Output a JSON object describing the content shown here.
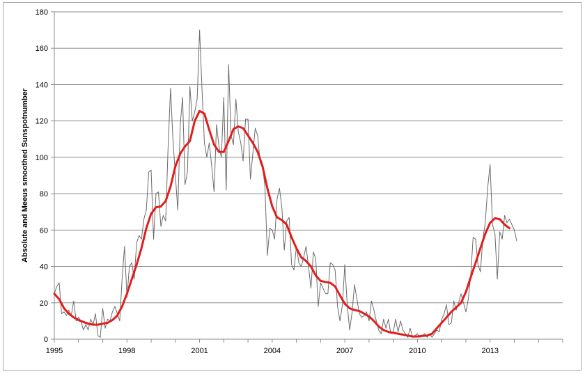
{
  "chart_data": {
    "type": "line",
    "title": "",
    "xlabel": "",
    "ylabel": "Absolute and Meeus smoothed Sunspotnumber",
    "xlim": [
      1995,
      2016
    ],
    "ylim": [
      0,
      180
    ],
    "x_ticks": [
      1995,
      1998,
      2001,
      2004,
      2007,
      2010,
      2013
    ],
    "x_tick_labels": [
      "1995",
      "1998",
      "2001",
      "2004",
      "2007",
      "2010",
      "2013"
    ],
    "y_ticks": [
      0,
      20,
      40,
      60,
      80,
      100,
      120,
      140,
      160,
      180
    ],
    "y_tick_labels": [
      "0",
      "20",
      "40",
      "60",
      "80",
      "100",
      "120",
      "140",
      "160",
      "180"
    ],
    "grid": "horizontal",
    "legend": "none",
    "series": [
      {
        "style": "thin gray line",
        "color": "#6b6b6b",
        "points": [
          [
            1995.0,
            25
          ],
          [
            1995.1,
            29
          ],
          [
            1995.2,
            31
          ],
          [
            1995.3,
            14
          ],
          [
            1995.4,
            15
          ],
          [
            1995.5,
            13
          ],
          [
            1995.6,
            16
          ],
          [
            1995.7,
            13
          ],
          [
            1995.8,
            21
          ],
          [
            1995.9,
            10
          ],
          [
            1996.0,
            12
          ],
          [
            1996.1,
            10
          ],
          [
            1996.2,
            5
          ],
          [
            1996.3,
            8
          ],
          [
            1996.4,
            5
          ],
          [
            1996.5,
            11
          ],
          [
            1996.6,
            8
          ],
          [
            1996.7,
            14
          ],
          [
            1996.8,
            2
          ],
          [
            1996.9,
            1
          ],
          [
            1997.0,
            17
          ],
          [
            1997.1,
            6
          ],
          [
            1997.2,
            11
          ],
          [
            1997.3,
            10
          ],
          [
            1997.4,
            15
          ],
          [
            1997.5,
            18
          ],
          [
            1997.6,
            14
          ],
          [
            1997.7,
            10
          ],
          [
            1997.8,
            33
          ],
          [
            1997.9,
            51
          ],
          [
            1998.0,
            23
          ],
          [
            1998.1,
            40
          ],
          [
            1998.2,
            42
          ],
          [
            1998.3,
            33
          ],
          [
            1998.4,
            53
          ],
          [
            1998.5,
            57
          ],
          [
            1998.6,
            55
          ],
          [
            1998.7,
            66
          ],
          [
            1998.8,
            71
          ],
          [
            1998.9,
            92
          ],
          [
            1999.0,
            93
          ],
          [
            1999.1,
            55
          ],
          [
            1999.2,
            80
          ],
          [
            1999.3,
            81
          ],
          [
            1999.4,
            62
          ],
          [
            1999.5,
            68
          ],
          [
            1999.6,
            65
          ],
          [
            1999.7,
            106
          ],
          [
            1999.8,
            138
          ],
          [
            1999.9,
            110
          ],
          [
            2000.0,
            90
          ],
          [
            2000.1,
            71
          ],
          [
            2000.2,
            118
          ],
          [
            2000.3,
            133
          ],
          [
            2000.4,
            85
          ],
          [
            2000.5,
            92
          ],
          [
            2000.6,
            139
          ],
          [
            2000.7,
            120
          ],
          [
            2000.8,
            125
          ],
          [
            2000.9,
            132
          ],
          [
            2001.0,
            170
          ],
          [
            2001.1,
            138
          ],
          [
            2001.2,
            108
          ],
          [
            2001.3,
            100
          ],
          [
            2001.4,
            108
          ],
          [
            2001.5,
            95
          ],
          [
            2001.6,
            81
          ],
          [
            2001.7,
            118
          ],
          [
            2001.8,
            106
          ],
          [
            2001.9,
            100
          ],
          [
            2002.0,
            133
          ],
          [
            2002.1,
            82
          ],
          [
            2002.2,
            151
          ],
          [
            2002.3,
            112
          ],
          [
            2002.4,
            107
          ],
          [
            2002.5,
            132
          ],
          [
            2002.6,
            114
          ],
          [
            2002.7,
            108
          ],
          [
            2002.8,
            98
          ],
          [
            2002.9,
            121
          ],
          [
            2003.0,
            121
          ],
          [
            2003.1,
            88
          ],
          [
            2003.2,
            102
          ],
          [
            2003.3,
            116
          ],
          [
            2003.4,
            112
          ],
          [
            2003.5,
            97
          ],
          [
            2003.6,
            95
          ],
          [
            2003.7,
            84
          ],
          [
            2003.8,
            46
          ],
          [
            2003.9,
            61
          ],
          [
            2004.0,
            60
          ],
          [
            2004.1,
            55
          ],
          [
            2004.2,
            77
          ],
          [
            2004.3,
            83
          ],
          [
            2004.4,
            72
          ],
          [
            2004.5,
            49
          ],
          [
            2004.6,
            65
          ],
          [
            2004.7,
            67
          ],
          [
            2004.8,
            41
          ],
          [
            2004.9,
            38
          ],
          [
            2005.0,
            51
          ],
          [
            2005.1,
            42
          ],
          [
            2005.2,
            40
          ],
          [
            2005.3,
            45
          ],
          [
            2005.4,
            51
          ],
          [
            2005.5,
            40
          ],
          [
            2005.6,
            28
          ],
          [
            2005.7,
            48
          ],
          [
            2005.8,
            44
          ],
          [
            2005.9,
            18
          ],
          [
            2006.0,
            31
          ],
          [
            2006.1,
            28
          ],
          [
            2006.2,
            25
          ],
          [
            2006.3,
            25
          ],
          [
            2006.4,
            42
          ],
          [
            2006.5,
            41
          ],
          [
            2006.6,
            38
          ],
          [
            2006.7,
            18
          ],
          [
            2006.8,
            10
          ],
          [
            2006.9,
            19
          ],
          [
            2007.0,
            41
          ],
          [
            2007.1,
            19
          ],
          [
            2007.2,
            5
          ],
          [
            2007.3,
            15
          ],
          [
            2007.4,
            30
          ],
          [
            2007.5,
            22
          ],
          [
            2007.6,
            14
          ],
          [
            2007.7,
            12
          ],
          [
            2007.8,
            13
          ],
          [
            2007.9,
            15
          ],
          [
            2008.0,
            10
          ],
          [
            2008.1,
            21
          ],
          [
            2008.2,
            16
          ],
          [
            2008.3,
            10
          ],
          [
            2008.4,
            5
          ],
          [
            2008.5,
            3
          ],
          [
            2008.6,
            11
          ],
          [
            2008.7,
            6
          ],
          [
            2008.8,
            11
          ],
          [
            2008.9,
            3
          ],
          [
            2009.0,
            4
          ],
          [
            2009.1,
            11
          ],
          [
            2009.2,
            4
          ],
          [
            2009.3,
            10
          ],
          [
            2009.4,
            5
          ],
          [
            2009.5,
            3
          ],
          [
            2009.6,
            1
          ],
          [
            2009.7,
            6
          ],
          [
            2009.8,
            1
          ],
          [
            2009.9,
            2
          ],
          [
            2010.0,
            3
          ],
          [
            2010.1,
            1
          ],
          [
            2010.2,
            2
          ],
          [
            2010.3,
            3
          ],
          [
            2010.4,
            1
          ],
          [
            2010.5,
            3
          ],
          [
            2010.6,
            1
          ],
          [
            2010.7,
            3
          ],
          [
            2010.8,
            5
          ],
          [
            2010.9,
            4
          ],
          [
            2011.0,
            11
          ],
          [
            2011.1,
            14
          ],
          [
            2011.2,
            19
          ],
          [
            2011.3,
            8
          ],
          [
            2011.4,
            9
          ],
          [
            2011.5,
            21
          ],
          [
            2011.6,
            16
          ],
          [
            2011.7,
            20
          ],
          [
            2011.8,
            25
          ],
          [
            2011.9,
            20
          ],
          [
            2012.0,
            15
          ],
          [
            2012.1,
            22
          ],
          [
            2012.2,
            35
          ],
          [
            2012.3,
            56
          ],
          [
            2012.4,
            55
          ],
          [
            2012.5,
            41
          ],
          [
            2012.6,
            37
          ],
          [
            2012.7,
            55
          ],
          [
            2012.8,
            64
          ],
          [
            2012.9,
            83
          ],
          [
            2013.0,
            96
          ],
          [
            2013.1,
            63
          ],
          [
            2013.2,
            58
          ],
          [
            2013.3,
            33
          ],
          [
            2013.4,
            59
          ],
          [
            2013.5,
            55
          ],
          [
            2013.6,
            68
          ],
          [
            2013.7,
            64
          ],
          [
            2013.8,
            66
          ],
          [
            2013.9,
            63
          ],
          [
            2014.0,
            60
          ],
          [
            2014.1,
            54
          ]
        ]
      },
      {
        "style": "thick red smoothed line",
        "color": "#e31c1c",
        "points": [
          [
            1995.0,
            25
          ],
          [
            1995.2,
            22
          ],
          [
            1995.4,
            17
          ],
          [
            1995.6,
            14
          ],
          [
            1995.8,
            12
          ],
          [
            1996.0,
            10.5
          ],
          [
            1996.2,
            9.5
          ],
          [
            1996.4,
            8.5
          ],
          [
            1996.6,
            8
          ],
          [
            1996.8,
            8
          ],
          [
            1997.0,
            8.5
          ],
          [
            1997.2,
            9
          ],
          [
            1997.4,
            10.5
          ],
          [
            1997.6,
            13
          ],
          [
            1997.8,
            18
          ],
          [
            1998.0,
            25
          ],
          [
            1998.2,
            33
          ],
          [
            1998.4,
            41
          ],
          [
            1998.6,
            50
          ],
          [
            1998.8,
            61
          ],
          [
            1999.0,
            69
          ],
          [
            1999.2,
            72.5
          ],
          [
            1999.4,
            73
          ],
          [
            1999.6,
            76
          ],
          [
            1999.8,
            84
          ],
          [
            2000.0,
            95
          ],
          [
            2000.2,
            102
          ],
          [
            2000.4,
            106
          ],
          [
            2000.6,
            109
          ],
          [
            2000.8,
            120
          ],
          [
            2001.0,
            125.5
          ],
          [
            2001.2,
            124
          ],
          [
            2001.4,
            115
          ],
          [
            2001.6,
            107
          ],
          [
            2001.8,
            103
          ],
          [
            2002.0,
            103
          ],
          [
            2002.2,
            109
          ],
          [
            2002.4,
            115.5
          ],
          [
            2002.6,
            117
          ],
          [
            2002.8,
            116
          ],
          [
            2003.0,
            112
          ],
          [
            2003.2,
            108
          ],
          [
            2003.4,
            103
          ],
          [
            2003.6,
            95
          ],
          [
            2003.8,
            83
          ],
          [
            2004.0,
            73
          ],
          [
            2004.2,
            67
          ],
          [
            2004.4,
            65.5
          ],
          [
            2004.6,
            63
          ],
          [
            2004.8,
            56
          ],
          [
            2005.0,
            50
          ],
          [
            2005.2,
            45
          ],
          [
            2005.4,
            43
          ],
          [
            2005.6,
            40
          ],
          [
            2005.8,
            35
          ],
          [
            2006.0,
            32
          ],
          [
            2006.2,
            31.5
          ],
          [
            2006.4,
            31
          ],
          [
            2006.6,
            29
          ],
          [
            2006.8,
            24
          ],
          [
            2007.0,
            19.5
          ],
          [
            2007.2,
            17
          ],
          [
            2007.4,
            16
          ],
          [
            2007.6,
            15.5
          ],
          [
            2007.8,
            14
          ],
          [
            2008.0,
            12.5
          ],
          [
            2008.2,
            10
          ],
          [
            2008.4,
            7
          ],
          [
            2008.6,
            5
          ],
          [
            2008.8,
            4
          ],
          [
            2009.0,
            3.5
          ],
          [
            2009.2,
            3
          ],
          [
            2009.4,
            2.5
          ],
          [
            2009.6,
            2
          ],
          [
            2009.8,
            1.5
          ],
          [
            2010.0,
            1.5
          ],
          [
            2010.2,
            1.8
          ],
          [
            2010.4,
            2
          ],
          [
            2010.6,
            3
          ],
          [
            2010.8,
            6
          ],
          [
            2011.0,
            9
          ],
          [
            2011.2,
            12
          ],
          [
            2011.4,
            15
          ],
          [
            2011.6,
            17.5
          ],
          [
            2011.8,
            20
          ],
          [
            2012.0,
            26
          ],
          [
            2012.2,
            34
          ],
          [
            2012.4,
            42
          ],
          [
            2012.6,
            50
          ],
          [
            2012.8,
            58
          ],
          [
            2013.0,
            64
          ],
          [
            2013.2,
            66.5
          ],
          [
            2013.4,
            66
          ],
          [
            2013.6,
            63
          ],
          [
            2013.8,
            61
          ]
        ]
      }
    ]
  }
}
